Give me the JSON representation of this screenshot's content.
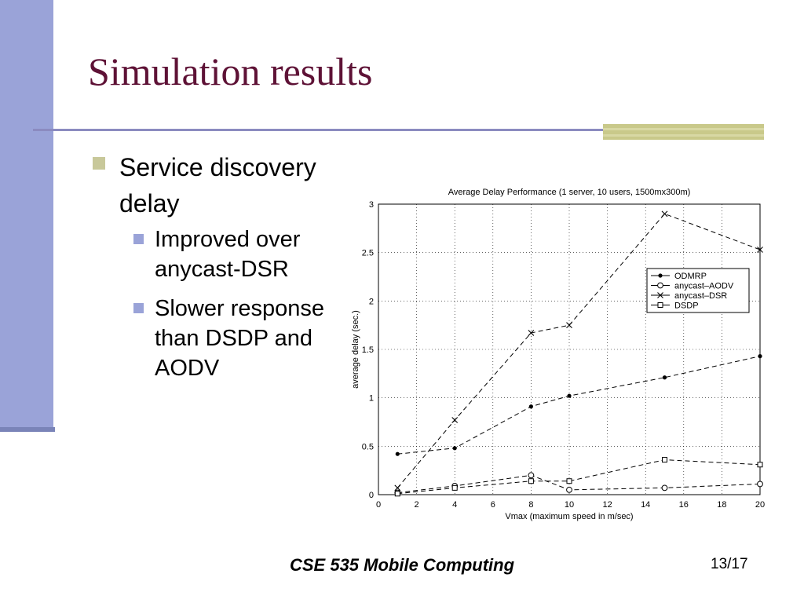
{
  "slide": {
    "title": "Simulation results",
    "bullets": [
      {
        "text": "Service discovery delay",
        "sub": [
          "Improved over anycast-DSR",
          "Slower response than DSDP and AODV"
        ]
      }
    ],
    "footer_center": "CSE 535 Mobile Computing",
    "page_number": "13/17"
  },
  "colors": {
    "title": "#5e1236",
    "left_bar": "#9aa3d8",
    "accent": "#c9c98a"
  },
  "chart_data": {
    "type": "line",
    "title": "Average Delay Performance (1 server, 10 users, 1500mx300m)",
    "xlabel": "Vmax (maximum speed in m/sec)",
    "ylabel": "average delay (sec.)",
    "xlim": [
      0,
      20
    ],
    "ylim": [
      0,
      3
    ],
    "xticks": [
      0,
      2,
      4,
      6,
      8,
      10,
      12,
      14,
      16,
      18,
      20
    ],
    "yticks": [
      0,
      0.5,
      1,
      1.5,
      2,
      2.5,
      3
    ],
    "xtick_labels": [
      "0",
      "2",
      "4",
      "6",
      "8",
      "10",
      "12",
      "14",
      "16",
      "18",
      "20"
    ],
    "ytick_labels": [
      "0",
      "0.5",
      "1",
      "1.5",
      "2",
      "2.5",
      "3"
    ],
    "grid": true,
    "legend_position": "right",
    "x": [
      1,
      4,
      8,
      10,
      15,
      20
    ],
    "series": [
      {
        "name": "ODMRP",
        "marker": "dot",
        "values": [
          0.42,
          0.48,
          0.91,
          1.02,
          1.21,
          1.43
        ]
      },
      {
        "name": "anycast–AODV",
        "marker": "circle",
        "values": [
          0.02,
          0.09,
          0.2,
          0.05,
          0.07,
          0.11
        ]
      },
      {
        "name": "anycast–DSR",
        "marker": "x",
        "values": [
          0.07,
          0.77,
          1.67,
          1.75,
          2.9,
          2.53
        ]
      },
      {
        "name": "DSDP",
        "marker": "square",
        "values": [
          0.01,
          0.07,
          0.14,
          0.14,
          0.36,
          0.31
        ]
      }
    ]
  }
}
